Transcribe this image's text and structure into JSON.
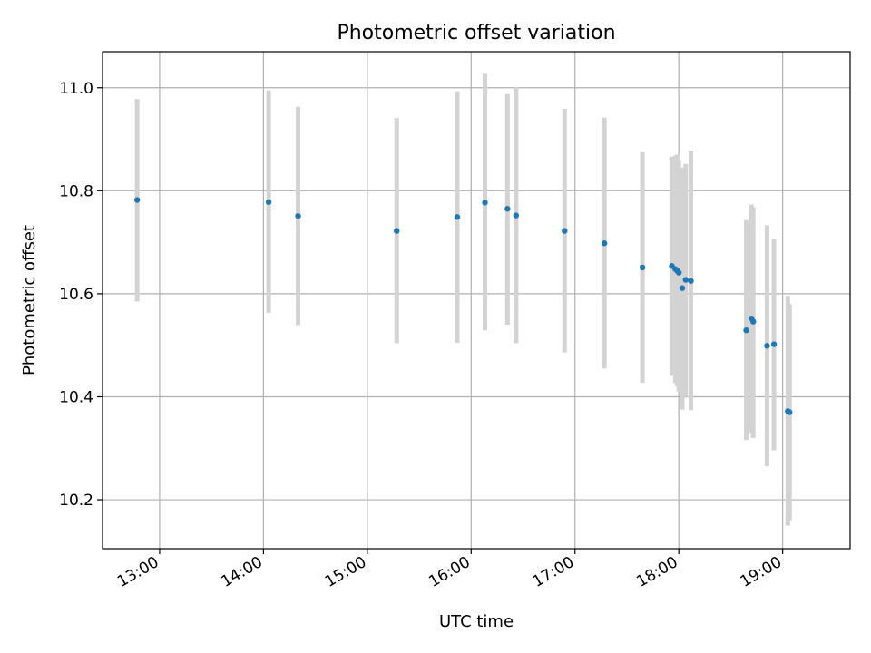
{
  "chart_data": {
    "type": "scatter",
    "title": "Photometric offset variation",
    "xlabel": "UTC time",
    "ylabel": "Photometric offset",
    "x_ticks": [
      "13:00",
      "14:00",
      "15:00",
      "16:00",
      "17:00",
      "18:00",
      "19:00"
    ],
    "y_ticks": [
      "10.2",
      "10.4",
      "10.6",
      "10.8",
      "11.0"
    ],
    "x_range": [
      "12:27",
      "19:39"
    ],
    "ylim": [
      10.105,
      11.07
    ],
    "grid": true,
    "error_bar_color": "#d3d3d3",
    "marker_color": "#1f77b4",
    "points": [
      {
        "t": "12:47",
        "y": 10.782,
        "low": 10.585,
        "high": 10.978
      },
      {
        "t": "14:03",
        "y": 10.778,
        "low": 10.563,
        "high": 10.995
      },
      {
        "t": "14:20",
        "y": 10.751,
        "low": 10.539,
        "high": 10.963
      },
      {
        "t": "15:17",
        "y": 10.722,
        "low": 10.504,
        "high": 10.941
      },
      {
        "t": "15:52",
        "y": 10.749,
        "low": 10.505,
        "high": 10.993
      },
      {
        "t": "16:08",
        "y": 10.777,
        "low": 10.529,
        "high": 11.027
      },
      {
        "t": "16:21",
        "y": 10.765,
        "low": 10.54,
        "high": 10.988
      },
      {
        "t": "16:26",
        "y": 10.752,
        "low": 10.504,
        "high": 11.001
      },
      {
        "t": "16:54",
        "y": 10.722,
        "low": 10.486,
        "high": 10.959
      },
      {
        "t": "17:17",
        "y": 10.698,
        "low": 10.455,
        "high": 10.942
      },
      {
        "t": "17:39",
        "y": 10.651,
        "low": 10.427,
        "high": 10.875
      },
      {
        "t": "17:56",
        "y": 10.654,
        "low": 10.441,
        "high": 10.866
      },
      {
        "t": "17:58",
        "y": 10.648,
        "low": 10.427,
        "high": 10.868
      },
      {
        "t": "17:59",
        "y": 10.645,
        "low": 10.42,
        "high": 10.87
      },
      {
        "t": "18:00",
        "y": 10.641,
        "low": 10.41,
        "high": 10.86
      },
      {
        "t": "18:02",
        "y": 10.611,
        "low": 10.375,
        "high": 10.845
      },
      {
        "t": "18:04",
        "y": 10.627,
        "low": 10.4,
        "high": 10.852
      },
      {
        "t": "18:07",
        "y": 10.625,
        "low": 10.374,
        "high": 10.878
      },
      {
        "t": "18:39",
        "y": 10.529,
        "low": 10.316,
        "high": 10.743
      },
      {
        "t": "18:42",
        "y": 10.552,
        "low": 10.33,
        "high": 10.773
      },
      {
        "t": "18:43",
        "y": 10.546,
        "low": 10.32,
        "high": 10.768
      },
      {
        "t": "18:51",
        "y": 10.499,
        "low": 10.265,
        "high": 10.733
      },
      {
        "t": "18:55",
        "y": 10.502,
        "low": 10.296,
        "high": 10.707
      },
      {
        "t": "19:03",
        "y": 10.372,
        "low": 10.15,
        "high": 10.596
      },
      {
        "t": "19:04",
        "y": 10.37,
        "low": 10.16,
        "high": 10.58
      }
    ]
  }
}
